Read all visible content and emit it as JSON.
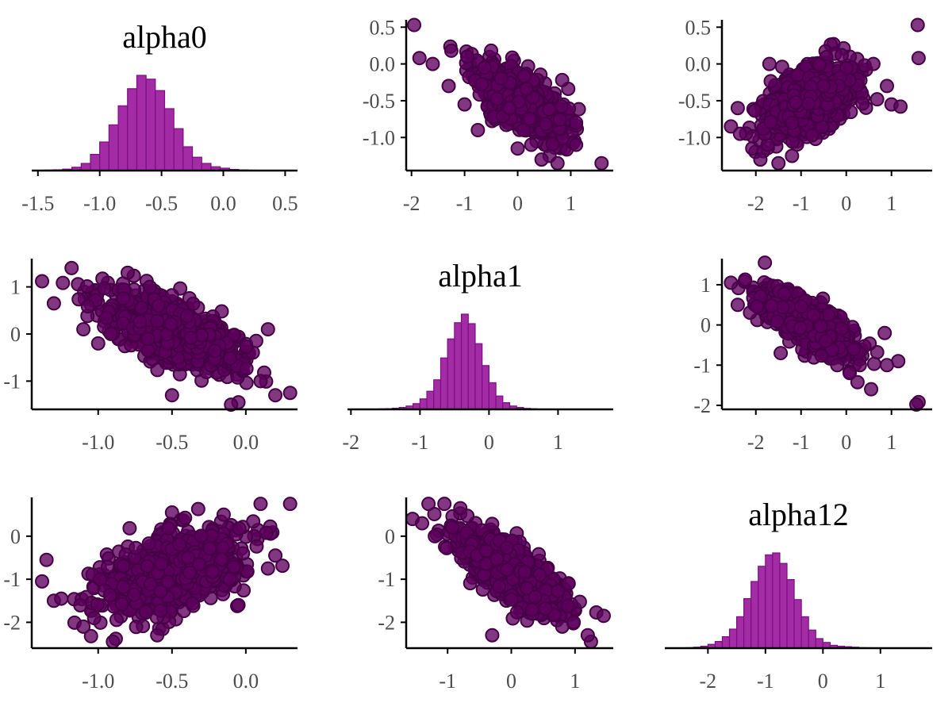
{
  "chart_data": {
    "type": "scatter",
    "layout": "pairs-matrix",
    "parameters": [
      "alpha0",
      "alpha1",
      "alpha12"
    ],
    "colors": {
      "hist_fill": "#a32ba6",
      "hist_edge": "#7a0f7f",
      "point_fill": "#5e005e",
      "point_edge": "#460046",
      "axis": "#000000",
      "tick_text": "#4d4d4d"
    },
    "histograms": [
      {
        "name": "alpha0",
        "title": "alpha0",
        "bin_start": -1.525,
        "bin_width": 0.075,
        "counts": [
          0.2,
          0.5,
          0.8,
          1.5,
          3.5,
          7.5,
          17,
          30,
          48,
          68,
          86,
          100,
          96,
          84,
          65,
          44,
          25,
          14,
          7.5,
          4,
          2.5,
          1.2,
          0.7,
          0.4,
          0.3,
          0.1,
          0.05,
          0.02
        ],
        "xlim": [
          -1.55,
          0.6
        ],
        "xticks": [
          {
            "v": -1.5,
            "label": "-1.5"
          },
          {
            "v": -1.0,
            "label": "-1.0"
          },
          {
            "v": -0.5,
            "label": "-0.5"
          },
          {
            "v": 0.0,
            "label": "0.0"
          },
          {
            "v": 0.5,
            "label": "0.5"
          }
        ]
      },
      {
        "name": "alpha1",
        "title": "alpha1",
        "bin_start": -2.0,
        "bin_width": 0.1,
        "counts": [
          0.1,
          0.2,
          0.2,
          0.3,
          0.5,
          0.7,
          1.2,
          2,
          3.5,
          6,
          11,
          19,
          31,
          54,
          74,
          91,
          100,
          90,
          69,
          46,
          28,
          14,
          7,
          3.5,
          2,
          1,
          0.6,
          0.3,
          0.2,
          0.1,
          0.05,
          0.05,
          0.02,
          0.02,
          0.02
        ],
        "xlim": [
          -2.05,
          1.8
        ],
        "xticks": [
          {
            "v": -2,
            "label": "-2"
          },
          {
            "v": -1,
            "label": "-1"
          },
          {
            "v": 0,
            "label": "0"
          },
          {
            "v": 1,
            "label": "1"
          }
        ]
      },
      {
        "name": "alpha12",
        "title": "alpha12",
        "bin_start": -2.5,
        "bin_width": 0.125,
        "counts": [
          0.2,
          0.5,
          1,
          2,
          4,
          7,
          12,
          20,
          33,
          52,
          70,
          86,
          98,
          100,
          89,
          72,
          51,
          33,
          19,
          10,
          6,
          3,
          2,
          1.5,
          1,
          0.5,
          0.4,
          0.3,
          0.2,
          0.1,
          0.05,
          0.05,
          0.02
        ],
        "xlim": [
          -2.75,
          1.9
        ],
        "xticks": [
          {
            "v": -2,
            "label": "-2"
          },
          {
            "v": -1,
            "label": "-1"
          },
          {
            "v": 0,
            "label": "0"
          },
          {
            "v": 1,
            "label": "1"
          }
        ]
      }
    ],
    "scatter_panels": [
      {
        "name": "alpha1-vs-alpha0",
        "row": 0,
        "col": 1,
        "x_param": "alpha1",
        "y_param": "alpha0",
        "xlim": [
          -2.1,
          1.8
        ],
        "ylim": [
          -1.45,
          0.6
        ],
        "xticks": [
          {
            "v": -2,
            "label": "-2"
          },
          {
            "v": -1,
            "label": "-1"
          },
          {
            "v": 0,
            "label": "0"
          },
          {
            "v": 1,
            "label": "1"
          }
        ],
        "yticks": [
          {
            "v": 0.5,
            "label": "0.5"
          },
          {
            "v": 0.0,
            "label": "0.0"
          },
          {
            "v": -0.5,
            "label": "-0.5"
          },
          {
            "v": -1.0,
            "label": "-1.0"
          }
        ],
        "cloud": {
          "mx": 0.05,
          "my": -0.5,
          "sx": 0.38,
          "sy": 0.22,
          "rho": -0.65,
          "n": 1000,
          "seed": 11
        },
        "points": [
          {
            "x": -1.95,
            "y": 0.53
          },
          {
            "x": -1.85,
            "y": 0.08
          },
          {
            "x": -1.6,
            "y": 0.0
          },
          {
            "x": -1.25,
            "y": 0.18
          },
          {
            "x": -1.3,
            "y": -0.3
          },
          {
            "x": -1.0,
            "y": -0.55
          },
          {
            "x": -0.95,
            "y": 0.1
          },
          {
            "x": -0.5,
            "y": 0.18
          },
          {
            "x": 0.6,
            "y": -1.25
          },
          {
            "x": 1.1,
            "y": -0.8
          },
          {
            "x": 1.58,
            "y": -1.35
          },
          {
            "x": 0.75,
            "y": -1.35
          },
          {
            "x": 1.1,
            "y": -1.1
          },
          {
            "x": -0.75,
            "y": -0.9
          },
          {
            "x": 0.0,
            "y": -1.15
          },
          {
            "x": 0.45,
            "y": -1.3
          }
        ]
      },
      {
        "name": "alpha12-vs-alpha0",
        "row": 0,
        "col": 2,
        "x_param": "alpha12",
        "y_param": "alpha0",
        "xlim": [
          -2.75,
          1.9
        ],
        "ylim": [
          -1.45,
          0.6
        ],
        "xticks": [
          {
            "v": -2,
            "label": "-2"
          },
          {
            "v": -1,
            "label": "-1"
          },
          {
            "v": 0,
            "label": "0"
          },
          {
            "v": 1,
            "label": "1"
          }
        ],
        "yticks": [
          {
            "v": 0.5,
            "label": "0.5"
          },
          {
            "v": 0.0,
            "label": "0.0"
          },
          {
            "v": -0.5,
            "label": "-0.5"
          },
          {
            "v": -1.0,
            "label": "-1.0"
          }
        ],
        "cloud": {
          "mx": -0.85,
          "my": -0.5,
          "sx": 0.45,
          "sy": 0.22,
          "rho": 0.45,
          "n": 1000,
          "seed": 23
        },
        "points": [
          {
            "x": 1.58,
            "y": 0.53
          },
          {
            "x": 1.6,
            "y": 0.08
          },
          {
            "x": -1.7,
            "y": 0.0
          },
          {
            "x": -2.55,
            "y": -0.85
          },
          {
            "x": -2.35,
            "y": -0.95
          },
          {
            "x": -2.4,
            "y": -0.6
          },
          {
            "x": -1.9,
            "y": -1.3
          },
          {
            "x": -1.5,
            "y": -1.35
          },
          {
            "x": -0.1,
            "y": 0.12
          },
          {
            "x": 0.6,
            "y": 0.0
          },
          {
            "x": 0.9,
            "y": -0.3
          },
          {
            "x": 1.0,
            "y": -0.55
          },
          {
            "x": 1.2,
            "y": -0.58
          },
          {
            "x": -1.2,
            "y": -1.25
          }
        ]
      },
      {
        "name": "alpha0-vs-alpha1",
        "row": 1,
        "col": 0,
        "x_param": "alpha0",
        "y_param": "alpha1",
        "xlim": [
          -1.45,
          0.35
        ],
        "ylim": [
          -1.6,
          1.6
        ],
        "xticks": [
          {
            "v": -1.0,
            "label": "-1.0"
          },
          {
            "v": -0.5,
            "label": "-0.5"
          },
          {
            "v": 0.0,
            "label": "0.0"
          }
        ],
        "yticks": [
          {
            "v": 1,
            "label": "1"
          },
          {
            "v": 0,
            "label": "0"
          },
          {
            "v": -1,
            "label": "-1"
          }
        ],
        "cloud": {
          "mx": -0.5,
          "my": 0.05,
          "sx": 0.22,
          "sy": 0.38,
          "rho": -0.65,
          "n": 1000,
          "seed": 37
        },
        "points": [
          {
            "x": -1.38,
            "y": 1.12
          },
          {
            "x": -1.18,
            "y": 1.4
          },
          {
            "x": -1.3,
            "y": 0.65
          },
          {
            "x": -1.1,
            "y": 0.1
          },
          {
            "x": -1.0,
            "y": -0.2
          },
          {
            "x": -0.5,
            "y": -1.3
          },
          {
            "x": 0.15,
            "y": 0.1
          },
          {
            "x": 0.3,
            "y": -1.25
          },
          {
            "x": -0.05,
            "y": -1.45
          },
          {
            "x": 0.1,
            "y": -1.0
          },
          {
            "x": -0.1,
            "y": -1.5
          },
          {
            "x": 0.2,
            "y": -1.3
          },
          {
            "x": -0.8,
            "y": 1.3
          },
          {
            "x": -0.65,
            "y": 1.0
          }
        ]
      },
      {
        "name": "alpha12-vs-alpha1",
        "row": 1,
        "col": 2,
        "x_param": "alpha12",
        "y_param": "alpha1",
        "xlim": [
          -2.75,
          1.9
        ],
        "ylim": [
          -2.1,
          1.65
        ],
        "xticks": [
          {
            "v": -2,
            "label": "-2"
          },
          {
            "v": -1,
            "label": "-1"
          },
          {
            "v": 0,
            "label": "0"
          },
          {
            "v": 1,
            "label": "1"
          }
        ],
        "yticks": [
          {
            "v": 1,
            "label": "1"
          },
          {
            "v": 0,
            "label": "0"
          },
          {
            "v": -1,
            "label": "-1"
          },
          {
            "v": -2,
            "label": "-2"
          }
        ],
        "cloud": {
          "mx": -0.85,
          "my": 0.05,
          "sx": 0.45,
          "sy": 0.38,
          "rho": -0.75,
          "n": 1000,
          "seed": 53
        },
        "points": [
          {
            "x": -1.8,
            "y": 1.55
          },
          {
            "x": -2.55,
            "y": 1.05
          },
          {
            "x": -2.4,
            "y": 0.5
          },
          {
            "x": 1.6,
            "y": -1.92
          },
          {
            "x": 1.55,
            "y": -1.98
          },
          {
            "x": 1.15,
            "y": -0.9
          },
          {
            "x": 0.85,
            "y": -0.2
          },
          {
            "x": 0.55,
            "y": -1.6
          },
          {
            "x": 0.9,
            "y": -1.0
          },
          {
            "x": -1.45,
            "y": -0.7
          },
          {
            "x": -0.2,
            "y": -1.0
          },
          {
            "x": 0.3,
            "y": -1.0
          }
        ]
      },
      {
        "name": "alpha0-vs-alpha12",
        "row": 2,
        "col": 0,
        "x_param": "alpha0",
        "y_param": "alpha12",
        "xlim": [
          -1.45,
          0.35
        ],
        "ylim": [
          -2.6,
          0.9
        ],
        "xticks": [
          {
            "v": -1.0,
            "label": "-1.0"
          },
          {
            "v": -0.5,
            "label": "-0.5"
          },
          {
            "v": 0.0,
            "label": "0.0"
          }
        ],
        "yticks": [
          {
            "v": 0,
            "label": "0"
          },
          {
            "v": -1,
            "label": "-1"
          },
          {
            "v": -2,
            "label": "-2"
          }
        ],
        "cloud": {
          "mx": -0.5,
          "my": -0.85,
          "sx": 0.22,
          "sy": 0.45,
          "rho": 0.45,
          "n": 1000,
          "seed": 71
        },
        "points": [
          {
            "x": -1.38,
            "y": -1.05
          },
          {
            "x": -1.3,
            "y": -1.5
          },
          {
            "x": -1.25,
            "y": -1.45
          },
          {
            "x": -1.35,
            "y": -0.55
          },
          {
            "x": -1.1,
            "y": -2.1
          },
          {
            "x": -0.9,
            "y": -2.45
          },
          {
            "x": 0.3,
            "y": 0.75
          },
          {
            "x": 0.1,
            "y": 0.75
          },
          {
            "x": 0.2,
            "y": -0.45
          },
          {
            "x": 0.15,
            "y": -0.75
          },
          {
            "x": -0.05,
            "y": -1.6
          },
          {
            "x": -0.6,
            "y": -2.3
          },
          {
            "x": -0.5,
            "y": 0.55
          },
          {
            "x": -0.15,
            "y": 0.5
          }
        ]
      },
      {
        "name": "alpha1-vs-alpha12",
        "row": 2,
        "col": 1,
        "x_param": "alpha1",
        "y_param": "alpha12",
        "xlim": [
          -1.65,
          1.6
        ],
        "ylim": [
          -2.6,
          0.9
        ],
        "xticks": [
          {
            "v": -1,
            "label": "-1"
          },
          {
            "v": 0,
            "label": "0"
          },
          {
            "v": 1,
            "label": "1"
          }
        ],
        "yticks": [
          {
            "v": 0,
            "label": "0"
          },
          {
            "v": -1,
            "label": "-1"
          },
          {
            "v": -2,
            "label": "-2"
          }
        ],
        "cloud": {
          "mx": 0.05,
          "my": -0.85,
          "sx": 0.38,
          "sy": 0.45,
          "rho": -0.75,
          "n": 1000,
          "seed": 89
        },
        "points": [
          {
            "x": -1.55,
            "y": 0.4
          },
          {
            "x": -1.3,
            "y": 0.75
          },
          {
            "x": -1.05,
            "y": 0.75
          },
          {
            "x": -1.4,
            "y": 0.3
          },
          {
            "x": -1.2,
            "y": 0.0
          },
          {
            "x": 1.45,
            "y": -1.85
          },
          {
            "x": 1.25,
            "y": -2.45
          },
          {
            "x": 1.2,
            "y": -2.3
          },
          {
            "x": 0.9,
            "y": -1.1
          },
          {
            "x": -0.3,
            "y": -2.3
          },
          {
            "x": 0.8,
            "y": -2.1
          },
          {
            "x": -0.8,
            "y": 0.65
          }
        ]
      }
    ]
  }
}
